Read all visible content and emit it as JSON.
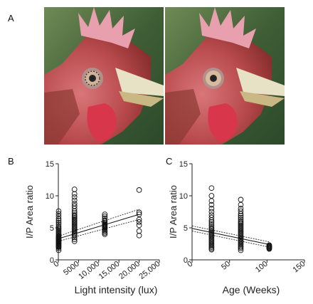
{
  "panels": {
    "a_label": "A",
    "b_label": "B",
    "c_label": "C"
  },
  "photos": [
    {
      "name": "rooster-eye-pupil-outlined",
      "marker_icon": "asterisk-icon"
    },
    {
      "name": "rooster-eye-iris-marked",
      "marker_icon": "asterisk-icon"
    }
  ],
  "chart_data": [
    {
      "type": "scatter",
      "title": "",
      "xlabel": "Light intensity (lux)",
      "ylabel": "I/P Area ratio",
      "xlim": [
        0,
        25000
      ],
      "ylim": [
        0,
        15
      ],
      "xticks": [
        0,
        5000,
        10000,
        15000,
        20000,
        25000
      ],
      "xtick_labels": [
        "0",
        "5000",
        "10,000",
        "15,000",
        "20,000",
        "25,000"
      ],
      "yticks": [
        0,
        5,
        10,
        15
      ],
      "ytick_labels": [
        "0",
        "5",
        "10",
        "15"
      ],
      "grid": false,
      "marker": "open-circle",
      "groups": [
        {
          "x": 80,
          "y": [
            1.5,
            1.8,
            2.0,
            2.1,
            2.2,
            2.3,
            2.4,
            2.5,
            2.6,
            2.7,
            2.8,
            2.9,
            3.0,
            3.1,
            3.2,
            3.3,
            3.4,
            3.5,
            3.6,
            3.7,
            3.8,
            4.0,
            4.2,
            4.4,
            4.6,
            4.8,
            5.0,
            5.2,
            5.5,
            5.8,
            6.1,
            6.4,
            6.8,
            7.2,
            7.6
          ]
        },
        {
          "x": 4000,
          "y": [
            2.9,
            3.2,
            3.5,
            3.8,
            4.0,
            4.2,
            4.4,
            4.6,
            4.8,
            5.0,
            5.2,
            5.4,
            5.6,
            5.8,
            6.0,
            6.2,
            6.4,
            6.6,
            6.8,
            7.0,
            7.3,
            7.6,
            8.0,
            8.4,
            8.8,
            9.3,
            9.8,
            10.3,
            11.0
          ]
        },
        {
          "x": 11500,
          "y": [
            4.0,
            4.2,
            4.4,
            4.6,
            4.8,
            5.0,
            5.1,
            5.2,
            5.3,
            5.4,
            5.5,
            5.6,
            5.8,
            6.0,
            6.2,
            6.5,
            6.8,
            7.1
          ]
        },
        {
          "x": 20000,
          "y": [
            3.8,
            4.5,
            5.4,
            5.9,
            6.3,
            7.1,
            7.4,
            10.9
          ]
        }
      ],
      "regression": {
        "x": [
          0,
          20000
        ],
        "y": [
          3.3,
          7.1
        ]
      },
      "confidence_band": {
        "x": [
          0,
          20000
        ],
        "lower": [
          2.9,
          6.3
        ],
        "upper": [
          3.7,
          7.9
        ]
      }
    },
    {
      "type": "scatter",
      "title": "",
      "xlabel": "Age (Weeks)",
      "ylabel": "I/P Area ratio",
      "xlim": [
        0,
        150
      ],
      "ylim": [
        0,
        15
      ],
      "xticks": [
        0,
        50,
        100,
        150
      ],
      "xtick_labels": [
        "0",
        "50",
        "100",
        "150"
      ],
      "yticks": [
        0,
        5,
        10,
        15
      ],
      "ytick_labels": [
        "0",
        "5",
        "10",
        "15"
      ],
      "grid": false,
      "marker": "open-circle",
      "groups": [
        {
          "x": 26,
          "y": [
            1.6,
            1.8,
            2.0,
            2.2,
            2.4,
            2.6,
            2.8,
            3.0,
            3.2,
            3.4,
            3.6,
            3.8,
            4.0,
            4.2,
            4.4,
            4.6,
            4.8,
            5.0,
            5.3,
            5.6,
            5.9,
            6.2,
            6.6,
            7.0,
            7.5,
            8.0,
            8.6,
            9.2,
            10.0,
            11.2
          ]
        },
        {
          "x": 65,
          "y": [
            1.5,
            1.8,
            2.0,
            2.2,
            2.4,
            2.6,
            2.8,
            3.0,
            3.2,
            3.4,
            3.6,
            3.8,
            4.0,
            4.2,
            4.4,
            4.6,
            4.8,
            5.0,
            5.2,
            5.4,
            5.6,
            5.8,
            6.0,
            6.3,
            6.6,
            6.9,
            7.2,
            7.6,
            8.0,
            8.6,
            9.4
          ]
        },
        {
          "x": 103,
          "y": [
            1.7,
            1.8,
            1.9,
            2.0,
            2.1,
            2.2,
            2.3
          ]
        }
      ],
      "regression": {
        "x": [
          0,
          103
        ],
        "y": [
          4.9,
          2.4
        ]
      },
      "confidence_band": {
        "x": [
          0,
          103
        ],
        "lower": [
          4.5,
          2.0
        ],
        "upper": [
          5.3,
          2.8
        ]
      }
    }
  ]
}
